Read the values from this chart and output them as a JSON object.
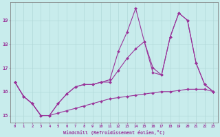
{
  "xlabel": "Windchill (Refroidissement éolien,°C)",
  "background_color": "#c8ecec",
  "grid_color": "#b0d8d8",
  "line_color": "#993399",
  "spine_color": "#808080",
  "xmin": -0.5,
  "xmax": 23.5,
  "ymin": 14.7,
  "ymax": 19.75,
  "yticks": [
    15,
    16,
    17,
    18,
    19
  ],
  "xticks": [
    0,
    1,
    2,
    3,
    4,
    5,
    6,
    7,
    8,
    9,
    10,
    11,
    12,
    13,
    14,
    15,
    16,
    17,
    18,
    19,
    20,
    21,
    22,
    23
  ],
  "series_spiky": [
    16.4,
    15.8,
    15.5,
    15.0,
    15.0,
    15.5,
    15.9,
    16.2,
    16.3,
    16.3,
    16.4,
    16.5,
    17.7,
    18.5,
    19.5,
    18.1,
    17.0,
    16.7,
    18.3,
    19.3,
    19.0,
    17.2,
    16.3,
    16.0
  ],
  "series_mid": [
    16.4,
    15.8,
    15.5,
    15.0,
    15.0,
    15.5,
    15.9,
    16.2,
    16.3,
    16.3,
    16.4,
    16.4,
    16.9,
    17.4,
    17.8,
    18.1,
    16.8,
    16.7,
    18.3,
    19.3,
    19.0,
    17.2,
    16.3,
    16.0
  ],
  "series_flat": [
    16.4,
    15.8,
    15.5,
    15.0,
    15.0,
    15.1,
    15.2,
    15.3,
    15.4,
    15.5,
    15.6,
    15.7,
    15.75,
    15.8,
    15.85,
    15.9,
    15.95,
    16.0,
    16.0,
    16.05,
    16.1,
    16.1,
    16.1,
    16.0
  ]
}
